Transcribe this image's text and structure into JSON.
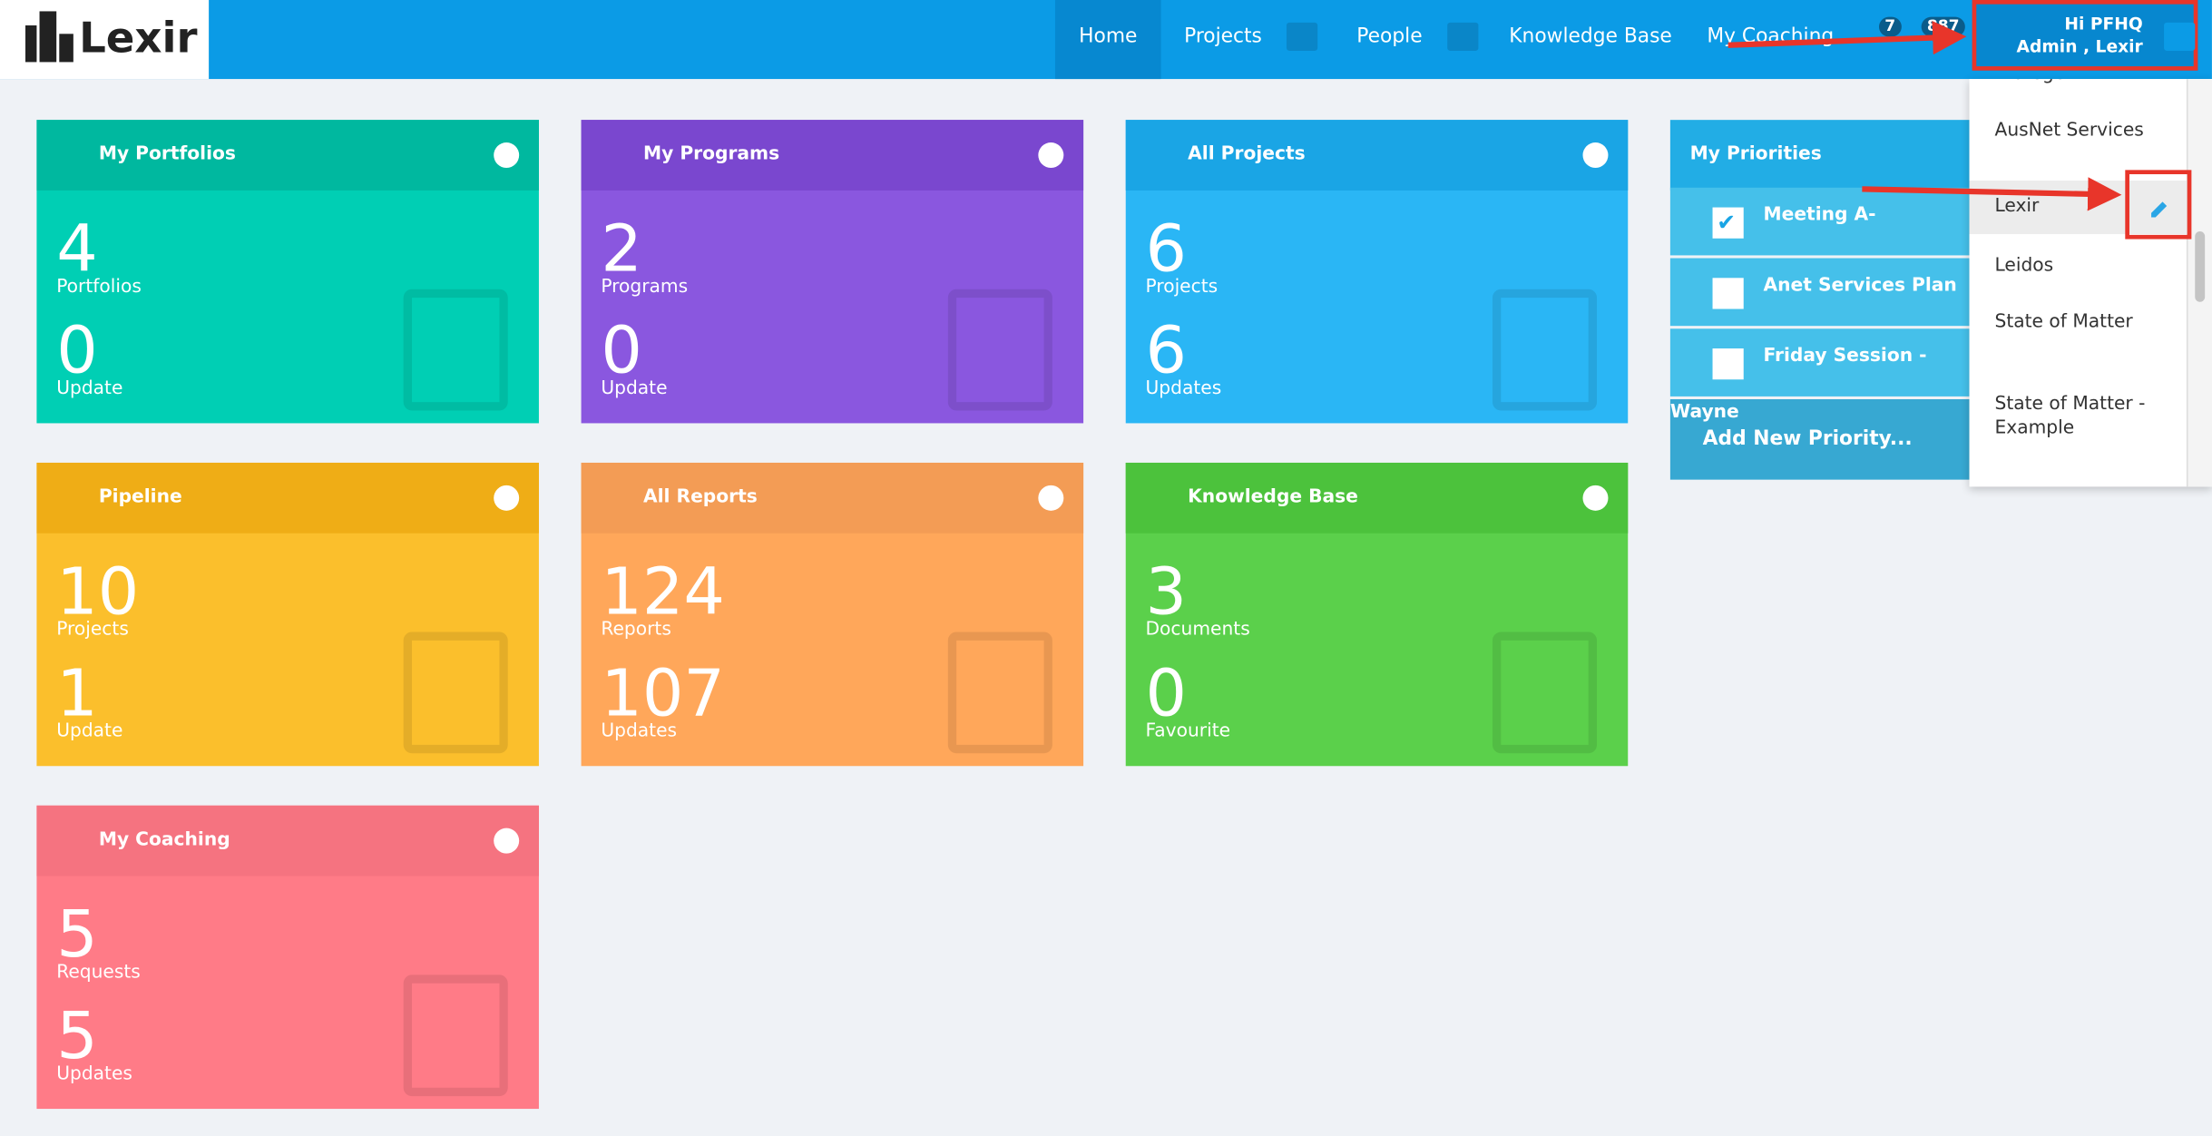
{
  "nav": {
    "logo": "Lexir",
    "items": [
      "Home",
      "Projects",
      "People",
      "Knowledge Base",
      "My Coaching"
    ],
    "badges": [
      "7",
      "887"
    ],
    "user": "Hi PFHQ Admin , Lexir"
  },
  "cards": [
    {
      "title": "My Portfolios",
      "count1": 4,
      "label1": "Portfolios",
      "count2": 0,
      "label2": "Update"
    },
    {
      "title": "My Programs",
      "count1": 2,
      "label1": "Programs",
      "count2": 0,
      "label2": "Update"
    },
    {
      "title": "All Projects",
      "count1": 6,
      "label1": "Projects",
      "count2": 6,
      "label2": "Updates"
    },
    {
      "title": "Pipeline",
      "count1": 10,
      "label1": "Projects",
      "count2": 1,
      "label2": "Update"
    },
    {
      "title": "All Reports",
      "count1": 124,
      "label1": "Reports",
      "count2": 107,
      "label2": "Updates"
    },
    {
      "title": "Knowledge Base",
      "count1": 3,
      "label1": "Documents",
      "count2": 0,
      "label2": "Favourite"
    },
    {
      "title": "My Coaching",
      "count1": 5,
      "label1": "Requests",
      "count2": 5,
      "label2": "Updates"
    }
  ],
  "priorities": {
    "title": "My Priorities",
    "items": [
      {
        "label": "Meeting A-Electricity",
        "checked": true
      },
      {
        "label": "Anet Services Plan",
        "checked": false
      },
      {
        "label": "Friday Session - Wayne",
        "checked": false
      }
    ],
    "add": "Add New Priority..."
  },
  "dropdown": {
    "items": [
      "Protégé",
      "AusNet Services",
      "Lexir",
      "Leidos",
      "State of Matter",
      "State of Matter - Example"
    ]
  }
}
